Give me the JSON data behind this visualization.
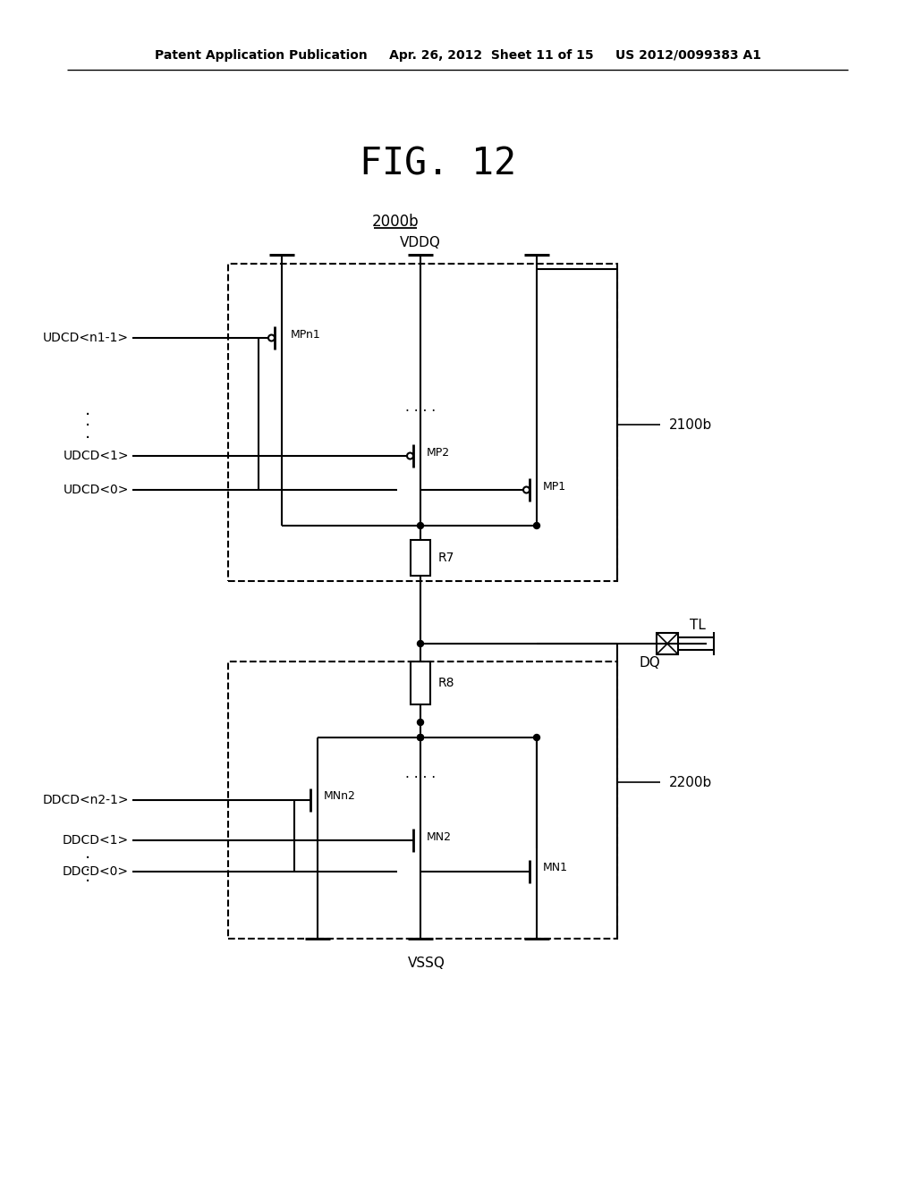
{
  "title": "FIG. 12",
  "label_2000b": "2000b",
  "label_2100b": "2100b",
  "label_2200b": "2200b",
  "label_VDDQ": "VDDQ",
  "label_VSSQ": "VSSQ",
  "label_DQ": "DQ",
  "label_TL": "TL",
  "label_R7": "R7",
  "label_R8": "R8",
  "label_MPn1": "MPn1",
  "label_MP2": "MP2",
  "label_MP1": "MP1",
  "label_MNn2": "MNn2",
  "label_MN2": "MN2",
  "label_MN1": "MN1",
  "label_UDCD_n1": "UDCD<n1-1>",
  "label_UDCD_1": "UDCD<1>",
  "label_UDCD_0": "UDCD<0>",
  "label_DDCD_n2": "DDCD<n2-1>",
  "label_DDCD_1": "DDCD<1>",
  "label_DDCD_0": "DDCD<0>",
  "patent_text": "Patent Application Publication     Apr. 26, 2012  Sheet 11 of 15     US 2012/0099383 A1",
  "bg_color": "#ffffff"
}
